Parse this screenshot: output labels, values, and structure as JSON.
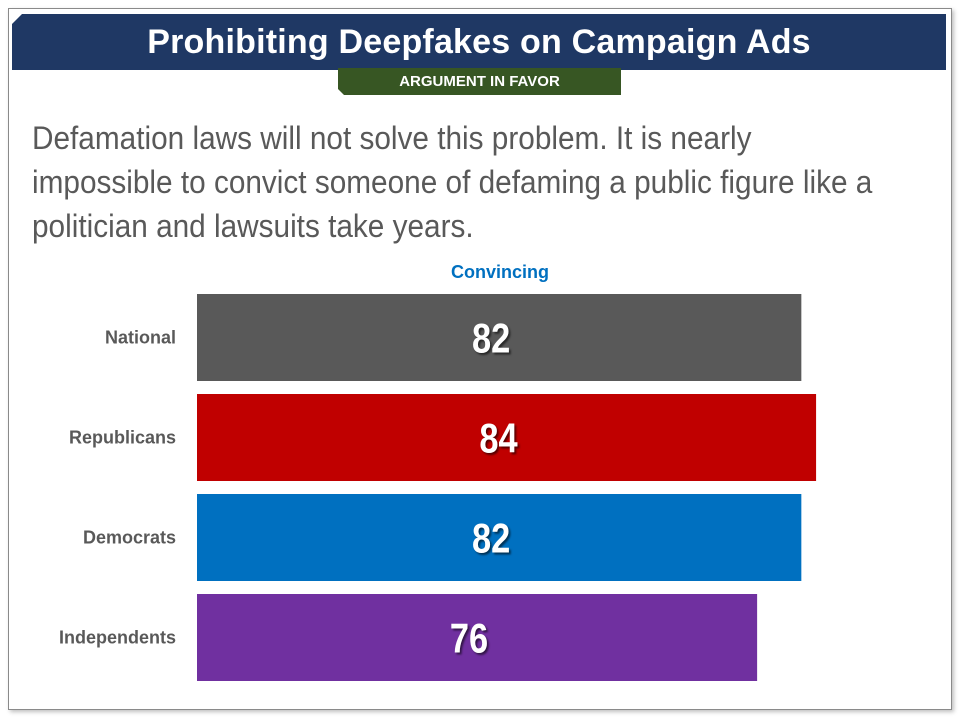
{
  "header": {
    "title": "Prohibiting Deepfakes on Campaign Ads",
    "subtitle": "ARGUMENT IN FAVOR"
  },
  "statement": "Defamation laws will not solve this problem. It is nearly impossible to convict someone of defaming a public figure like a politician and lawsuits take years.",
  "colors": {
    "title_bg": "#1f3864",
    "subtitle_bg": "#375623",
    "national": "#595959",
    "republicans": "#c00000",
    "democrats": "#0070c0",
    "independents": "#7030a0",
    "series_label": "#0070c0"
  },
  "chart_data": {
    "type": "bar",
    "orientation": "horizontal",
    "categories": [
      "National",
      "Republicans",
      "Democrats",
      "Independents"
    ],
    "series": [
      {
        "name": "Convincing",
        "values": [
          82,
          84,
          82,
          76
        ]
      }
    ],
    "bar_colors": [
      "#595959",
      "#c00000",
      "#0070c0",
      "#7030a0"
    ],
    "xlim": [
      0,
      100
    ],
    "grid": false,
    "data_labels": true
  }
}
